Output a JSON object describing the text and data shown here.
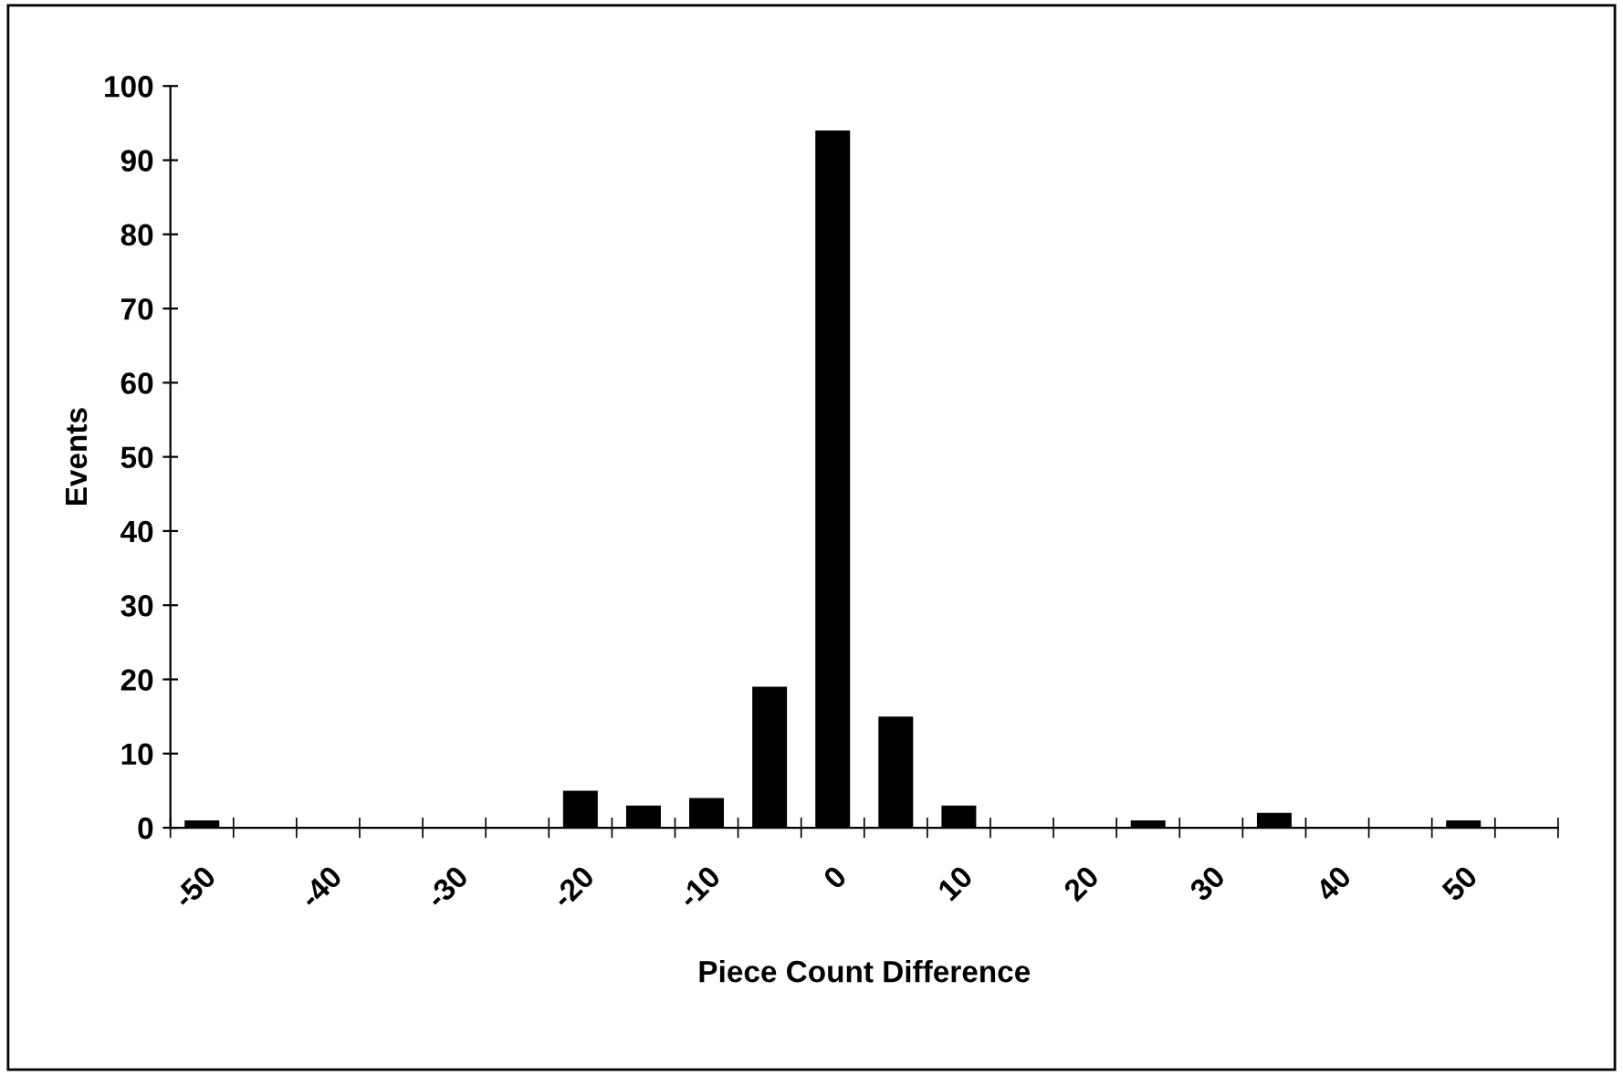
{
  "chart_data": {
    "type": "bar",
    "xlabel": "Piece Count Difference",
    "ylabel": "Events",
    "categories": [
      "-50",
      null,
      "-40",
      null,
      "-30",
      null,
      "-20",
      null,
      "-10",
      null,
      "0",
      null,
      "10",
      null,
      "20",
      null,
      "30",
      null,
      "40",
      null,
      "50",
      null
    ],
    "values": [
      1,
      0,
      0,
      0,
      0,
      0,
      5,
      3,
      4,
      19,
      94,
      15,
      3,
      0,
      0,
      1,
      0,
      2,
      0,
      0,
      1,
      0
    ],
    "color": "#000000",
    "ylim": [
      0,
      100
    ],
    "yticks": [
      0,
      10,
      20,
      30,
      40,
      50,
      60,
      70,
      80,
      90,
      100
    ],
    "grid": false
  }
}
